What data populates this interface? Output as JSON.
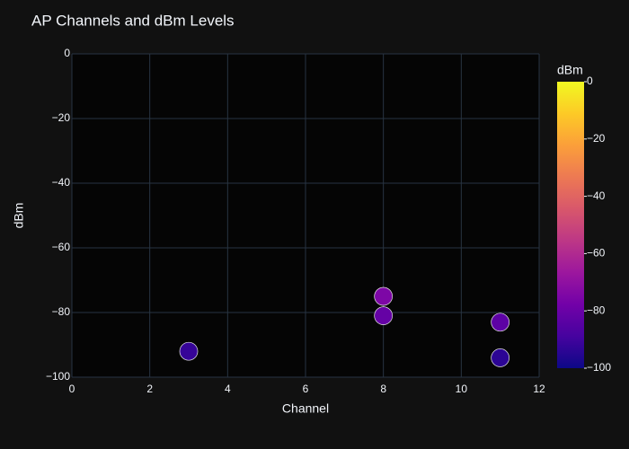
{
  "chart_data": {
    "type": "scatter",
    "title": "AP Channels and dBm Levels",
    "x_label": "Channel",
    "y_label": "dBm",
    "series": [
      {
        "x": [
          3,
          8,
          8,
          11,
          11
        ],
        "values": [
          -92,
          -75,
          -81,
          -83,
          -94
        ]
      }
    ],
    "xlim": [
      0,
      12
    ],
    "xticks": [
      0,
      2,
      4,
      6,
      8,
      10,
      12
    ],
    "ylim": [
      -100,
      0
    ],
    "yticks": [
      0,
      {
        "value": -20,
        "label": "−20"
      },
      {
        "value": -40,
        "label": "−40"
      },
      {
        "value": -60,
        "label": "−60"
      },
      {
        "value": -80,
        "label": "−80"
      },
      {
        "value": -100,
        "label": "−100"
      }
    ],
    "grid": true,
    "colorbar": {
      "title": "dBm",
      "clim": [
        -100,
        0
      ],
      "ticks": [
        0,
        {
          "value": -20,
          "label": "−20"
        },
        {
          "value": -40,
          "label": "−40"
        },
        {
          "value": -60,
          "label": "−60"
        },
        {
          "value": -80,
          "label": "−80"
        },
        {
          "value": -100,
          "label": "−100"
        }
      ],
      "colorscale": [
        "#0d0887",
        "#46039f",
        "#7201a8",
        "#9c179e",
        "#bd3786",
        "#d8576b",
        "#ed7953",
        "#fb9f3a",
        "#fdca26",
        "#f0f921"
      ]
    }
  }
}
